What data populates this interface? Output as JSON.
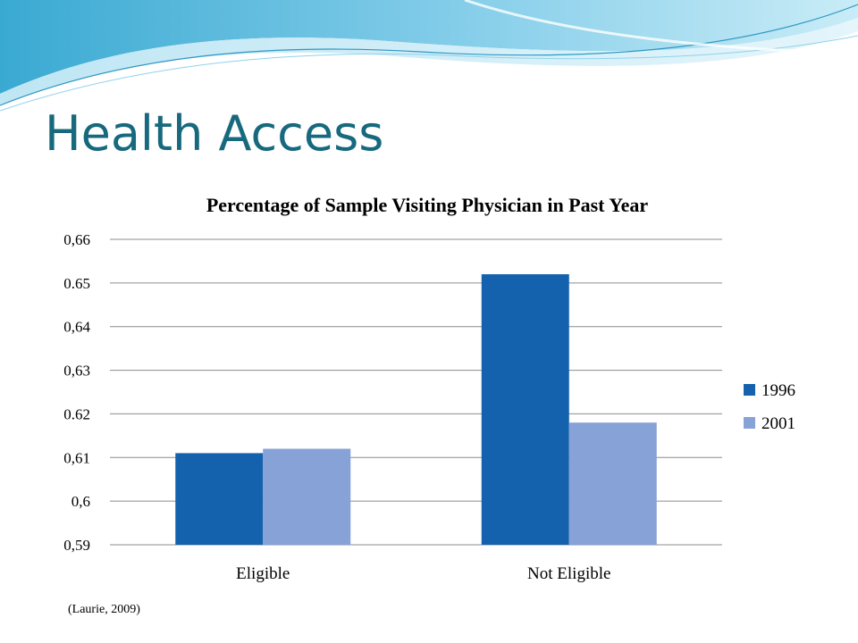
{
  "slide": {
    "title": "Health Access",
    "citation": "(Laurie, 2009)"
  },
  "colors": {
    "title": "#17697e",
    "wave_light": "#a8dcef",
    "wave_mid": "#6cc2e3",
    "wave_dark": "#2f9cc9"
  },
  "chart_data": {
    "type": "bar",
    "title": "Percentage of Sample Visiting Physician in Past Year",
    "xlabel": "",
    "ylabel": "",
    "categories": [
      "Eligible",
      "Not Eligible"
    ],
    "series": [
      {
        "name": "1996",
        "values": [
          0.611,
          0.652
        ],
        "color": "#1461ad"
      },
      {
        "name": "2001",
        "values": [
          0.612,
          0.618
        ],
        "color": "#87a2d6"
      }
    ],
    "ylim": [
      0.59,
      0.66
    ],
    "yticks": [
      0.59,
      0.6,
      0.61,
      0.62,
      0.63,
      0.64,
      0.65,
      0.66
    ],
    "ytick_labels": [
      "0,59",
      "0,6",
      "0,61",
      "0.62",
      "0,63",
      "0,64",
      "0.65",
      "0,66"
    ],
    "grid": true,
    "legend_position": "right"
  }
}
